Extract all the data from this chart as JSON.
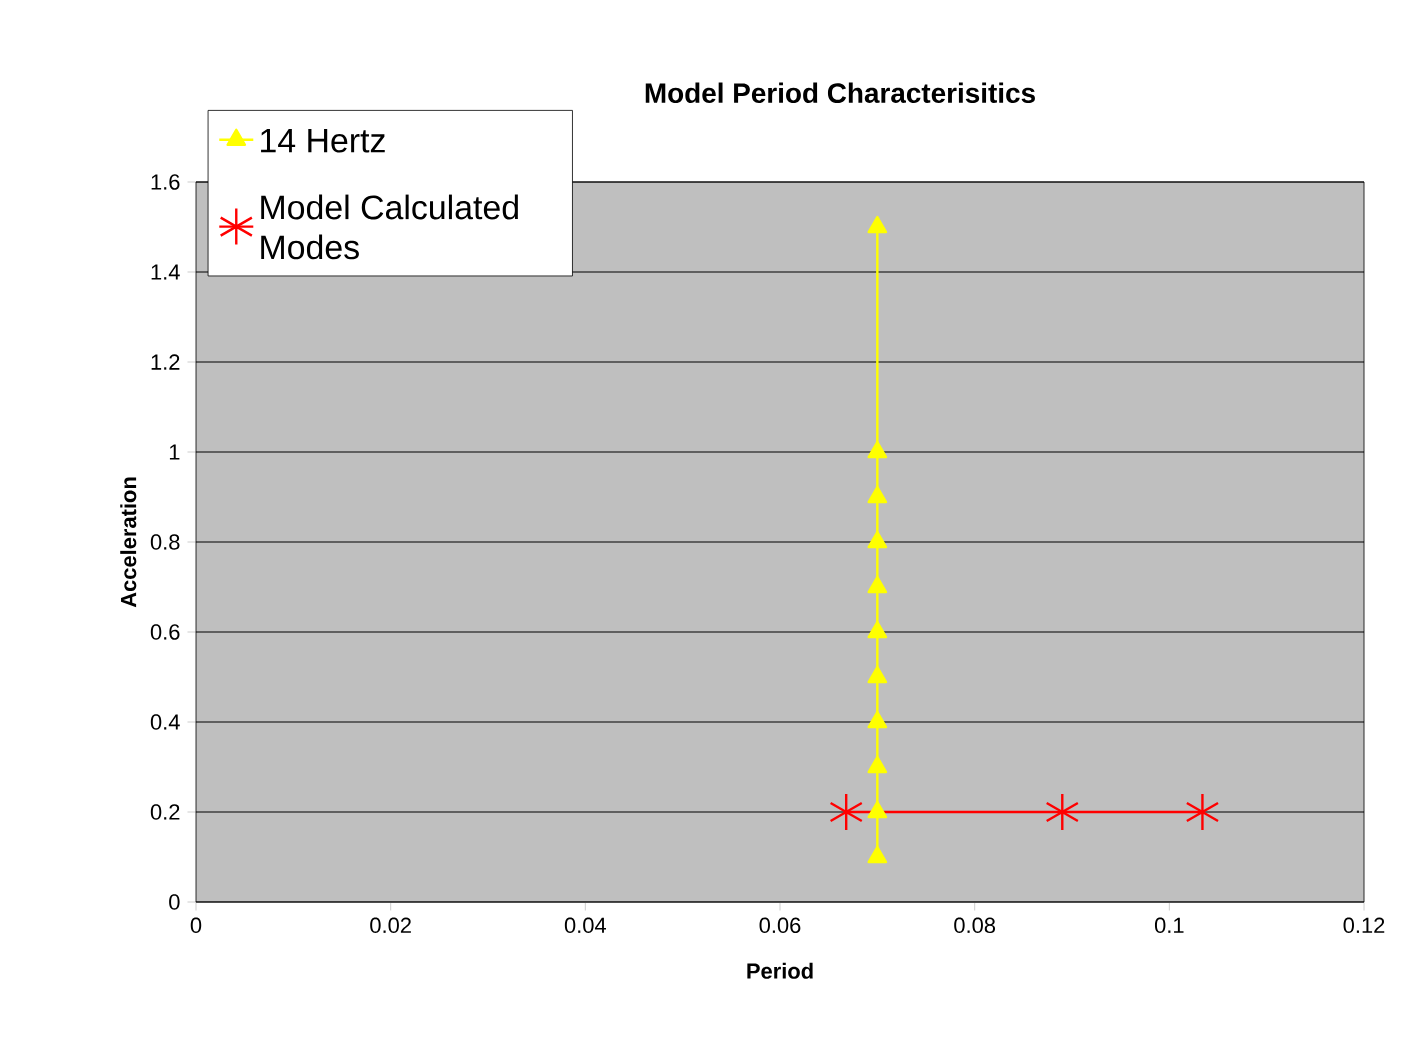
{
  "chart_data": {
    "type": "line",
    "title": "Model Period Characterisitics",
    "xlabel": "Period",
    "ylabel": "Acceleration",
    "xlim": [
      0,
      0.12
    ],
    "xticks": [
      0,
      0.02,
      0.04,
      0.06,
      0.08,
      0.1,
      0.12
    ],
    "ylim": [
      0,
      1.6
    ],
    "yticks": [
      0,
      0.2,
      0.4,
      0.6,
      0.8,
      1,
      1.2,
      1.4,
      1.6
    ],
    "grid": "y",
    "legend": "top left",
    "series": [
      {
        "name": "14 Hertz",
        "color": "#ffff00",
        "marker": "triangle",
        "x": [
          0.07,
          0.07,
          0.07,
          0.07,
          0.07,
          0.07,
          0.07,
          0.07,
          0.07,
          0.07,
          0.07
        ],
        "values": [
          0.1,
          0.2,
          0.3,
          0.4,
          0.5,
          0.6,
          0.7,
          0.8,
          0.9,
          1.0,
          1.5
        ]
      },
      {
        "name": "Model Calculated Modes",
        "color": "#ff0000",
        "marker": "cross",
        "x": [
          0.0668,
          0.089,
          0.1034
        ],
        "values": [
          0.2,
          0.2,
          0.2
        ]
      }
    ]
  }
}
